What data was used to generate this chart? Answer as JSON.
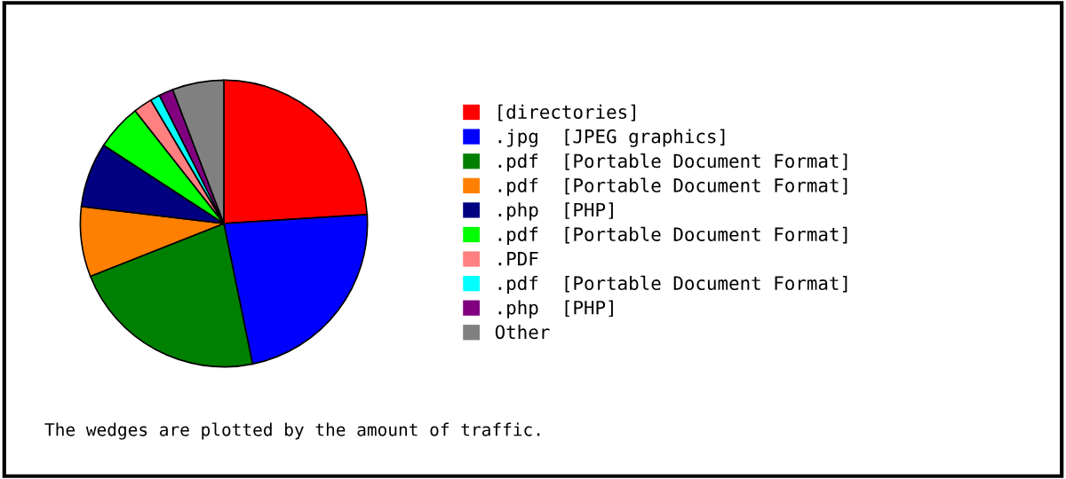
{
  "chart_data": {
    "type": "pie",
    "categories": [
      "[directories]",
      ".jpg  [JPEG graphics]",
      ".pdf  [Portable Document Format]",
      ".pdf  [Portable Document Format]",
      ".php  [PHP]",
      ".pdf  [Portable Document Format]",
      ".PDF",
      ".pdf  [Portable Document Format]",
      ".php  [PHP]",
      "Other"
    ],
    "values": [
      24.0,
      22.8,
      22.2,
      7.9,
      7.3,
      5.2,
      2.1,
      1.1,
      1.6,
      5.8
    ],
    "colors": [
      "#ff0000",
      "#0000ff",
      "#008000",
      "#ff8000",
      "#000080",
      "#00ff00",
      "#ff8080",
      "#00ffff",
      "#800080",
      "#808080"
    ],
    "legend": "right",
    "annotations": [
      "The wedges are plotted by the amount of traffic."
    ]
  }
}
